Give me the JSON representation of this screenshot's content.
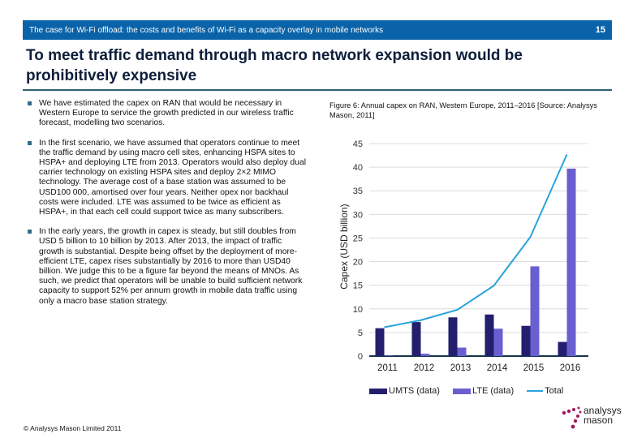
{
  "header": {
    "text": "The case for Wi-Fi offload: the costs and benefits of Wi-Fi as a capacity overlay in mobile networks",
    "page_number": "15"
  },
  "title": "To meet traffic demand through macro network expansion would be prohibitively expensive",
  "bullets": [
    "We have estimated the capex on RAN that would be necessary in Western Europe to service the growth predicted in our wireless traffic forecast, modelling two scenarios.",
    "In the first scenario, we have assumed that operators continue to meet the traffic demand by using macro cell sites, enhancing HSPA sites to HSPA+ and deploying LTE from 2013. Operators would also deploy dual carrier technology on existing HSPA sites and deploy 2×2 MIMO technology. The average cost of a base station was assumed to be USD100 000, amortised over four years. Neither opex nor backhaul costs were included. LTE was assumed to be twice as efficient as HSPA+, in that each cell could support twice as many subscribers.",
    "In the early years, the growth in capex is steady, but still doubles from USD 5 billion to 10 billion by 2013. After 2013, the impact of traffic growth is substantial. Despite being offset by the deployment of more-efficient LTE, capex rises substantially by 2016 to more than USD40 billion. We judge this to be a figure far beyond the means of MNOs. As such, we predict that operators will be unable to build sufficient network capacity to support 52% per annum growth in mobile data traffic using only a macro base station strategy."
  ],
  "figure_caption": "Figure 6: Annual capex on RAN, Western Europe, 2011–2016 [Source: Analysys Mason, 2011]",
  "footer": "© Analysys Mason Limited 2011",
  "logo": {
    "line1": "analysys",
    "line2": "mason",
    "color": "#a3195b"
  },
  "colors": {
    "header_bg": "#0a63a8",
    "umts": "#231f6e",
    "lte": "#6a5fd0",
    "total": "#29a3dc"
  },
  "chart_data": {
    "type": "bar",
    "title": "Annual capex on RAN, Western Europe, 2011–2016",
    "xlabel": "",
    "ylabel": "Capex (USD billion)",
    "ylim": [
      0,
      45
    ],
    "yticks": [
      0,
      5,
      10,
      15,
      20,
      25,
      30,
      35,
      40,
      45
    ],
    "grid": true,
    "legend": "bottom",
    "categories": [
      "2011",
      "2012",
      "2013",
      "2014",
      "2015",
      "2016"
    ],
    "series": [
      {
        "name": "UMTS (data)",
        "kind": "bar",
        "values": [
          5.9,
          7.2,
          8.2,
          8.8,
          6.4,
          3.0
        ]
      },
      {
        "name": "LTE (data)",
        "kind": "bar",
        "values": [
          0.1,
          0.5,
          1.8,
          5.8,
          19.0,
          39.7
        ]
      },
      {
        "name": "Total",
        "kind": "line",
        "values": [
          6.1,
          7.6,
          9.8,
          14.9,
          25.2,
          42.7
        ]
      }
    ]
  }
}
